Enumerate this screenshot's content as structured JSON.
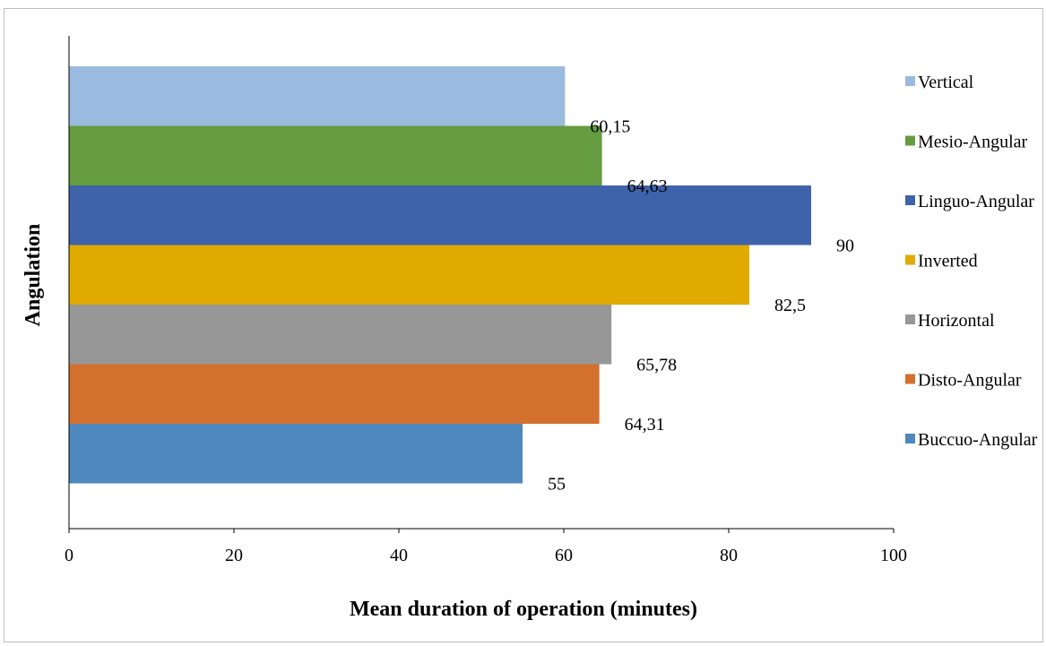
{
  "chart_data": {
    "type": "bar",
    "orientation": "horizontal",
    "xlabel": "Mean duration of operation (minutes)",
    "ylabel": "Angulation",
    "xlim": [
      0,
      100
    ],
    "xticks": [
      "0",
      "20",
      "40",
      "60",
      "80",
      "100"
    ],
    "grid": false,
    "legend_position": "right",
    "series": [
      {
        "name": "Vertical",
        "value": 60.15,
        "label": "60,15",
        "color": "#9bbadf"
      },
      {
        "name": "Mesio-Angular",
        "value": 64.63,
        "label": "64,63",
        "color": "#659c3f"
      },
      {
        "name": "Linguo-Angular",
        "value": 90,
        "label": "90",
        "color": "#3e63ab"
      },
      {
        "name": "Inverted",
        "value": 82.5,
        "label": "82,5",
        "color": "#e0aa00"
      },
      {
        "name": "Horizontal",
        "value": 65.78,
        "label": "65,78",
        "color": "#979797"
      },
      {
        "name": "Disto-Angular",
        "value": 64.31,
        "label": "64,31",
        "color": "#d4702e"
      },
      {
        "name": "Buccuo-Angular",
        "value": 55,
        "label": "55",
        "color": "#4e88bd"
      }
    ]
  }
}
